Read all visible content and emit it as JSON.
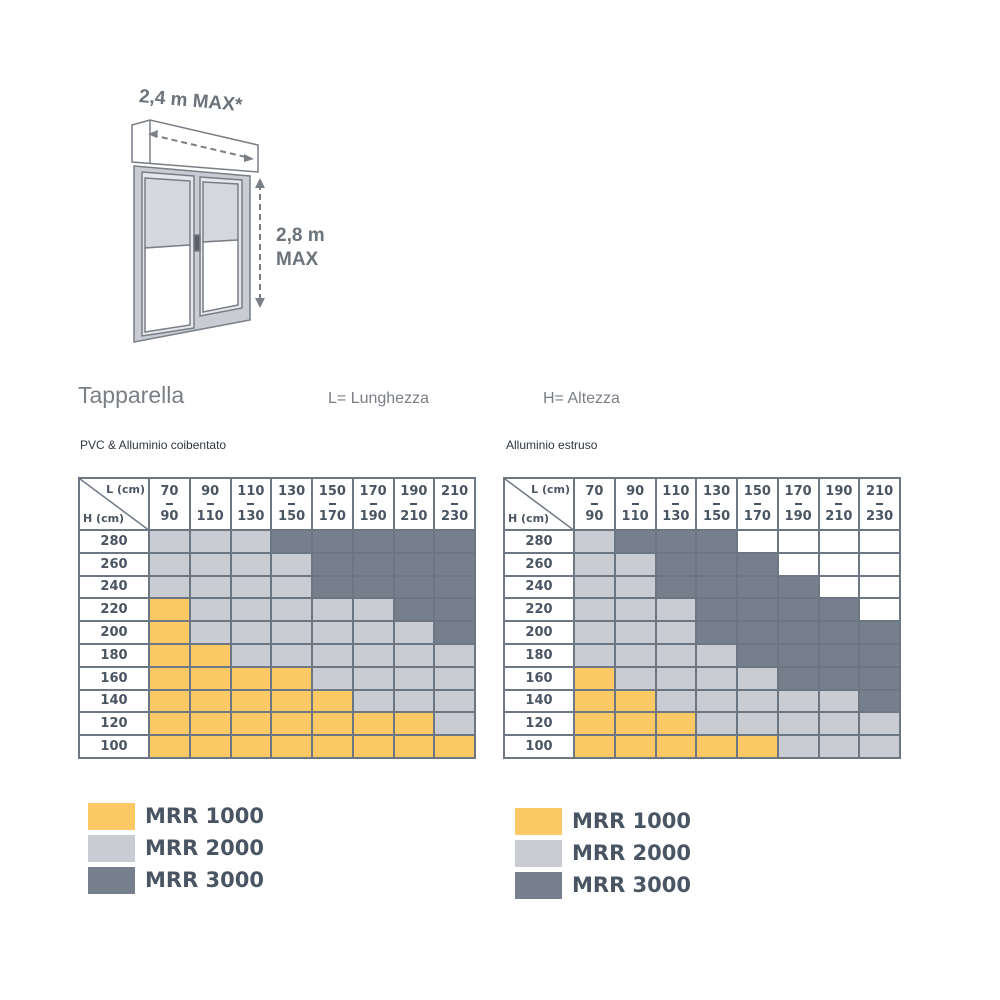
{
  "illustration": {
    "width_label": "2,4 m MAX*",
    "height_label_1": "2,8 m",
    "height_label_2": "MAX"
  },
  "header": {
    "title": "Tapparella",
    "l_legend": "L= Lunghezza",
    "h_legend": "H= Altezza"
  },
  "colors": {
    "MRR 1000": "#fdc964",
    "MRR 2000": "#c9ccd2",
    "MRR 3000": "#767f8c",
    "none": "#ffffff"
  },
  "tables": [
    {
      "subtitle": "PVC & Alluminio coibentato",
      "corner_l": "L (cm)",
      "corner_h": "H (cm)",
      "columns": [
        [
          "70",
          "90"
        ],
        [
          "90",
          "110"
        ],
        [
          "110",
          "130"
        ],
        [
          "130",
          "150"
        ],
        [
          "150",
          "170"
        ],
        [
          "170",
          "190"
        ],
        [
          "190",
          "210"
        ],
        [
          "210",
          "230"
        ]
      ],
      "rows": [
        {
          "h": "280",
          "cells": [
            "MRR 2000",
            "MRR 2000",
            "MRR 2000",
            "MRR 3000",
            "MRR 3000",
            "MRR 3000",
            "MRR 3000",
            "MRR 3000"
          ]
        },
        {
          "h": "260",
          "cells": [
            "MRR 2000",
            "MRR 2000",
            "MRR 2000",
            "MRR 2000",
            "MRR 3000",
            "MRR 3000",
            "MRR 3000",
            "MRR 3000"
          ]
        },
        {
          "h": "240",
          "cells": [
            "MRR 2000",
            "MRR 2000",
            "MRR 2000",
            "MRR 2000",
            "MRR 3000",
            "MRR 3000",
            "MRR 3000",
            "MRR 3000"
          ]
        },
        {
          "h": "220",
          "cells": [
            "MRR 1000",
            "MRR 2000",
            "MRR 2000",
            "MRR 2000",
            "MRR 2000",
            "MRR 2000",
            "MRR 3000",
            "MRR 3000"
          ]
        },
        {
          "h": "200",
          "cells": [
            "MRR 1000",
            "MRR 2000",
            "MRR 2000",
            "MRR 2000",
            "MRR 2000",
            "MRR 2000",
            "MRR 2000",
            "MRR 3000"
          ]
        },
        {
          "h": "180",
          "cells": [
            "MRR 1000",
            "MRR 1000",
            "MRR 2000",
            "MRR 2000",
            "MRR 2000",
            "MRR 2000",
            "MRR 2000",
            "MRR 2000"
          ]
        },
        {
          "h": "160",
          "cells": [
            "MRR 1000",
            "MRR 1000",
            "MRR 1000",
            "MRR 1000",
            "MRR 2000",
            "MRR 2000",
            "MRR 2000",
            "MRR 2000"
          ]
        },
        {
          "h": "140",
          "cells": [
            "MRR 1000",
            "MRR 1000",
            "MRR 1000",
            "MRR 1000",
            "MRR 1000",
            "MRR 2000",
            "MRR 2000",
            "MRR 2000"
          ]
        },
        {
          "h": "120",
          "cells": [
            "MRR 1000",
            "MRR 1000",
            "MRR 1000",
            "MRR 1000",
            "MRR 1000",
            "MRR 1000",
            "MRR 1000",
            "MRR 2000"
          ]
        },
        {
          "h": "100",
          "cells": [
            "MRR 1000",
            "MRR 1000",
            "MRR 1000",
            "MRR 1000",
            "MRR 1000",
            "MRR 1000",
            "MRR 1000",
            "MRR 1000"
          ]
        }
      ],
      "legend": [
        "MRR 1000",
        "MRR 2000",
        "MRR 3000"
      ]
    },
    {
      "subtitle": "Alluminio estruso",
      "corner_l": "L (cm)",
      "corner_h": "H (cm)",
      "columns": [
        [
          "70",
          "90"
        ],
        [
          "90",
          "110"
        ],
        [
          "110",
          "130"
        ],
        [
          "130",
          "150"
        ],
        [
          "150",
          "170"
        ],
        [
          "170",
          "190"
        ],
        [
          "190",
          "210"
        ],
        [
          "210",
          "230"
        ]
      ],
      "rows": [
        {
          "h": "280",
          "cells": [
            "MRR 2000",
            "MRR 3000",
            "MRR 3000",
            "MRR 3000",
            "none",
            "none",
            "none",
            "none"
          ]
        },
        {
          "h": "260",
          "cells": [
            "MRR 2000",
            "MRR 2000",
            "MRR 3000",
            "MRR 3000",
            "MRR 3000",
            "none",
            "none",
            "none"
          ]
        },
        {
          "h": "240",
          "cells": [
            "MRR 2000",
            "MRR 2000",
            "MRR 3000",
            "MRR 3000",
            "MRR 3000",
            "MRR 3000",
            "none",
            "none"
          ]
        },
        {
          "h": "220",
          "cells": [
            "MRR 2000",
            "MRR 2000",
            "MRR 2000",
            "MRR 3000",
            "MRR 3000",
            "MRR 3000",
            "MRR 3000",
            "none"
          ]
        },
        {
          "h": "200",
          "cells": [
            "MRR 2000",
            "MRR 2000",
            "MRR 2000",
            "MRR 3000",
            "MRR 3000",
            "MRR 3000",
            "MRR 3000",
            "MRR 3000"
          ]
        },
        {
          "h": "180",
          "cells": [
            "MRR 2000",
            "MRR 2000",
            "MRR 2000",
            "MRR 2000",
            "MRR 3000",
            "MRR 3000",
            "MRR 3000",
            "MRR 3000"
          ]
        },
        {
          "h": "160",
          "cells": [
            "MRR 1000",
            "MRR 2000",
            "MRR 2000",
            "MRR 2000",
            "MRR 2000",
            "MRR 3000",
            "MRR 3000",
            "MRR 3000"
          ]
        },
        {
          "h": "140",
          "cells": [
            "MRR 1000",
            "MRR 1000",
            "MRR 2000",
            "MRR 2000",
            "MRR 2000",
            "MRR 2000",
            "MRR 2000",
            "MRR 3000"
          ]
        },
        {
          "h": "120",
          "cells": [
            "MRR 1000",
            "MRR 1000",
            "MRR 1000",
            "MRR 2000",
            "MRR 2000",
            "MRR 2000",
            "MRR 2000",
            "MRR 2000"
          ]
        },
        {
          "h": "100",
          "cells": [
            "MRR 1000",
            "MRR 1000",
            "MRR 1000",
            "MRR 1000",
            "MRR 1000",
            "MRR 2000",
            "MRR 2000",
            "MRR 2000"
          ]
        }
      ],
      "legend": [
        "MRR 1000",
        "MRR 2000",
        "MRR 3000"
      ]
    }
  ]
}
